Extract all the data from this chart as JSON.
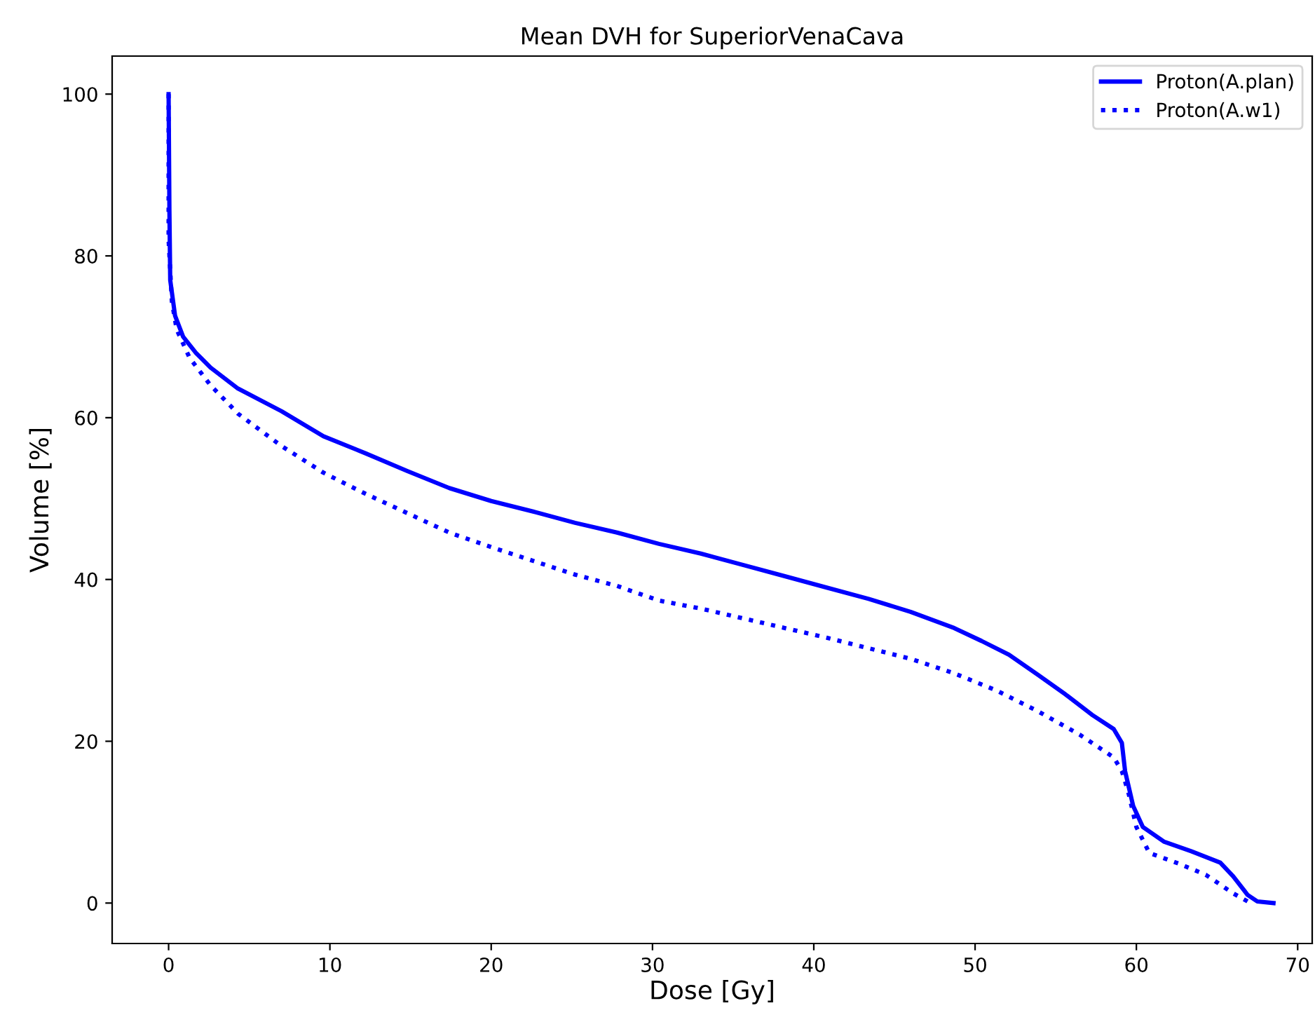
{
  "chart_data": {
    "type": "line",
    "title": "Mean DVH for SuperiorVenaCava",
    "xlabel": "Dose [Gy]",
    "ylabel": "Volume [%]",
    "xlim": [
      -3.5,
      70.9
    ],
    "ylim": [
      -5,
      104.7
    ],
    "xticks": [
      0,
      10,
      20,
      30,
      40,
      50,
      60,
      70
    ],
    "yticks": [
      0,
      20,
      40,
      60,
      80,
      100
    ],
    "grid": false,
    "legend": "top right",
    "series": [
      {
        "name": "Proton(A.plan)",
        "color": "#0000ff",
        "line_style": "solid",
        "x": [
          0,
          0.05,
          0.1,
          0.4,
          0.9,
          1.7,
          2.6,
          4.3,
          7,
          9.6,
          12.2,
          14.8,
          17.4,
          20,
          22.6,
          25.2,
          27.8,
          30.4,
          33,
          35.6,
          38.2,
          40.8,
          43.4,
          46,
          48.7,
          50.4,
          52.1,
          53.9,
          55.6,
          57.3,
          58.6,
          59.1,
          59.3,
          59.8,
          60.4,
          61.7,
          63.4,
          65.2,
          66,
          66.9,
          67.5,
          68.5
        ],
        "values": [
          100,
          85.6,
          77,
          72.6,
          70,
          68,
          66.2,
          63.6,
          60.8,
          57.7,
          55.6,
          53.4,
          51.3,
          49.7,
          48.4,
          47,
          45.8,
          44.4,
          43.2,
          41.8,
          40.4,
          39,
          37.6,
          36,
          34,
          32.4,
          30.7,
          28.2,
          25.8,
          23.2,
          21.5,
          19.8,
          16.3,
          12,
          9.4,
          7.6,
          6.4,
          5,
          3.3,
          1,
          0.2,
          0
        ]
      },
      {
        "name": "Proton(A.w1)",
        "color": "#0000ff",
        "line_style": "dotted",
        "x": [
          0,
          0,
          0.2,
          0.5,
          1.3,
          2.6,
          4.3,
          7,
          9.6,
          12.2,
          14.8,
          17.4,
          20,
          22.6,
          25.2,
          27.8,
          30.4,
          33,
          35.6,
          38.2,
          40.8,
          43.4,
          46,
          48.7,
          51.3,
          53.9,
          56.5,
          58.6,
          59.1,
          59.5,
          60,
          60.8,
          62.6,
          64.3,
          66,
          66.9
        ],
        "values": [
          100,
          82,
          74.4,
          70.9,
          67.4,
          64,
          60.5,
          56.5,
          53.2,
          50.6,
          48.2,
          45.8,
          44,
          42.3,
          40.6,
          39.2,
          37.4,
          36.4,
          35.2,
          34,
          32.8,
          31.5,
          30.2,
          28.4,
          26.3,
          23.7,
          20.8,
          18,
          16.3,
          13.7,
          9.4,
          6.2,
          4.9,
          3.5,
          1.2,
          0.2
        ]
      }
    ]
  }
}
